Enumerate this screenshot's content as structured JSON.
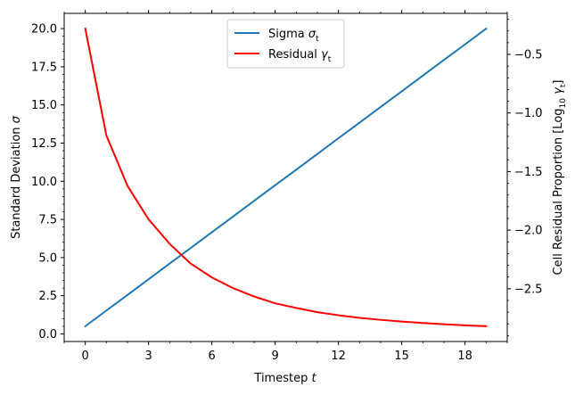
{
  "chart_data": {
    "type": "line",
    "xlabel": "Timestep",
    "xlabel_var": "t",
    "ylabel": "Standard Deviation",
    "ylabel_var": "σ",
    "y2label": "Cell Residual Proportion [Log",
    "y2label_sub": "10",
    "y2label_var": "γ",
    "y2label_var_sub": "t",
    "y2label_end": "]",
    "xlim": [
      -1,
      20
    ],
    "ylim": [
      -0.5,
      21.0
    ],
    "y2lim": [
      -2.95,
      -0.15
    ],
    "xticks": [
      0,
      3,
      6,
      9,
      12,
      15,
      18
    ],
    "yticks": [
      0.0,
      2.5,
      5.0,
      7.5,
      10.0,
      12.5,
      15.0,
      17.5,
      20.0
    ],
    "ytick_labels": [
      "0.0",
      "2.5",
      "5.0",
      "7.5",
      "10.0",
      "12.5",
      "15.0",
      "17.5",
      "20.0"
    ],
    "y2ticks": [
      -2.5,
      -2.0,
      -1.5,
      -1.0,
      -0.5
    ],
    "y2tick_labels": [
      "−2.5",
      "−2.0",
      "−1.5",
      "−1.0",
      "−0.5"
    ],
    "legend_position": "top-center",
    "grid": false,
    "x": [
      0,
      1,
      2,
      3,
      4,
      5,
      6,
      7,
      8,
      9,
      10,
      11,
      12,
      13,
      14,
      15,
      16,
      17,
      18,
      19
    ],
    "series": [
      {
        "name": "Sigma",
        "name_var": "σ",
        "name_sub": "t",
        "color": "#1f77b4",
        "axis": "left",
        "values": [
          0.5,
          1.53,
          2.55,
          3.58,
          4.61,
          5.63,
          6.66,
          7.68,
          8.71,
          9.74,
          10.76,
          11.79,
          12.82,
          13.84,
          14.87,
          15.89,
          16.92,
          17.95,
          18.97,
          20.0
        ]
      },
      {
        "name": "Residual",
        "name_var": "γ",
        "name_sub": "t",
        "color": "#ff0000",
        "axis": "left",
        "values": [
          20.0,
          13.0,
          9.7,
          7.5,
          5.9,
          4.6,
          3.7,
          3.0,
          2.45,
          2.0,
          1.7,
          1.42,
          1.22,
          1.05,
          0.92,
          0.81,
          0.71,
          0.63,
          0.56,
          0.5
        ]
      }
    ]
  }
}
